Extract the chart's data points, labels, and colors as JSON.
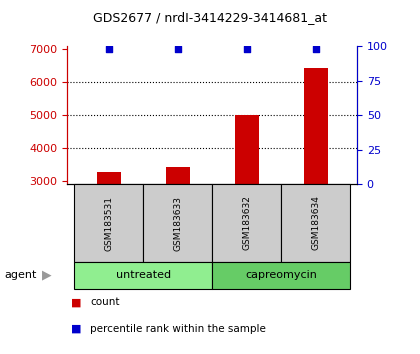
{
  "title": "GDS2677 / nrdI-3414229-3414681_at",
  "samples": [
    "GSM183531",
    "GSM183633",
    "GSM183632",
    "GSM183634"
  ],
  "counts": [
    3270,
    3420,
    5000,
    6440
  ],
  "percentile_ranks": [
    98,
    98,
    98,
    98
  ],
  "groups": [
    {
      "label": "untreated",
      "samples": [
        0,
        1
      ],
      "color": "#90ee90"
    },
    {
      "label": "capreomycin",
      "samples": [
        2,
        3
      ],
      "color": "#66cc66"
    }
  ],
  "group_row_label": "agent",
  "bar_color": "#cc0000",
  "dot_color": "#0000cc",
  "sample_box_color": "#cccccc",
  "ylim_left": [
    2900,
    7100
  ],
  "ylim_right": [
    0,
    100
  ],
  "yticks_left": [
    3000,
    4000,
    5000,
    6000,
    7000
  ],
  "yticks_right": [
    0,
    25,
    50,
    75,
    100
  ],
  "left_axis_color": "#cc0000",
  "right_axis_color": "#0000cc",
  "background_color": "#ffffff",
  "bar_width": 0.35,
  "legend_count_label": "count",
  "legend_pct_label": "percentile rank within the sample"
}
